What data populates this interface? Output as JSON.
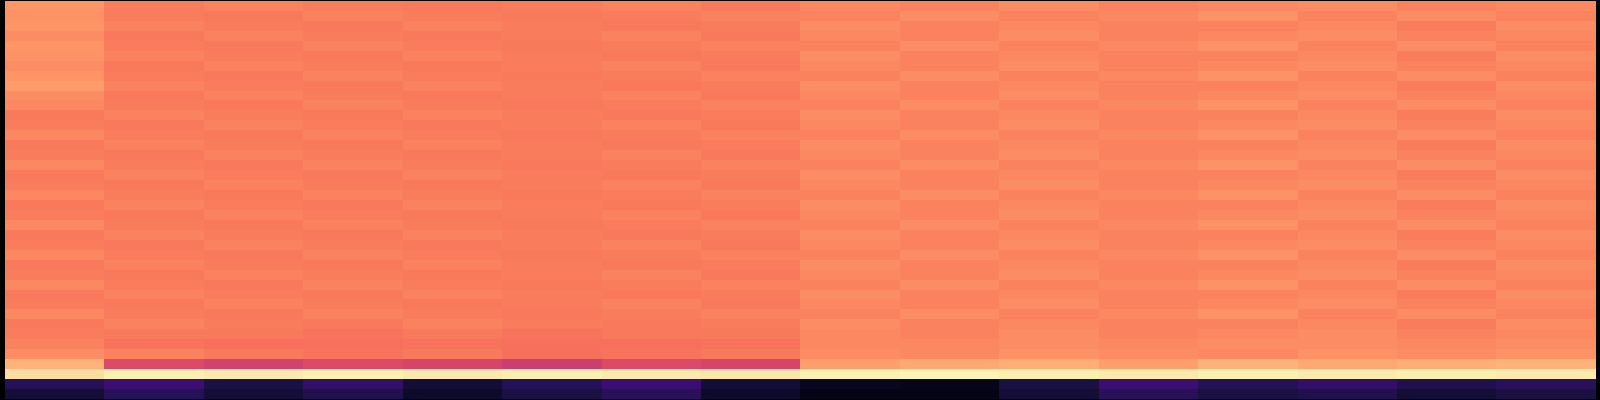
{
  "chart_data": {
    "type": "heatmap",
    "tick_labels": false,
    "color_range": [
      0,
      1
    ],
    "cells": [
      [
        0.78,
        0.73,
        0.74,
        0.73,
        0.72,
        0.73,
        0.74,
        0.72,
        0.75,
        0.74,
        0.76,
        0.74,
        0.75,
        0.76,
        0.74,
        0.75
      ],
      [
        0.77,
        0.73,
        0.72,
        0.74,
        0.73,
        0.72,
        0.73,
        0.74,
        0.74,
        0.76,
        0.74,
        0.75,
        0.77,
        0.74,
        0.76,
        0.74
      ],
      [
        0.78,
        0.74,
        0.73,
        0.72,
        0.74,
        0.73,
        0.72,
        0.73,
        0.76,
        0.74,
        0.75,
        0.74,
        0.74,
        0.75,
        0.73,
        0.76
      ],
      [
        0.76,
        0.72,
        0.74,
        0.73,
        0.72,
        0.73,
        0.74,
        0.72,
        0.75,
        0.74,
        0.76,
        0.74,
        0.75,
        0.76,
        0.74,
        0.75
      ],
      [
        0.78,
        0.73,
        0.72,
        0.74,
        0.73,
        0.72,
        0.73,
        0.74,
        0.74,
        0.76,
        0.74,
        0.75,
        0.77,
        0.74,
        0.76,
        0.74
      ],
      [
        0.77,
        0.74,
        0.73,
        0.72,
        0.74,
        0.73,
        0.72,
        0.73,
        0.76,
        0.74,
        0.75,
        0.74,
        0.74,
        0.75,
        0.73,
        0.76
      ],
      [
        0.76,
        0.72,
        0.74,
        0.73,
        0.72,
        0.73,
        0.74,
        0.72,
        0.75,
        0.74,
        0.76,
        0.74,
        0.75,
        0.76,
        0.74,
        0.75
      ],
      [
        0.78,
        0.73,
        0.72,
        0.74,
        0.73,
        0.72,
        0.73,
        0.74,
        0.74,
        0.76,
        0.74,
        0.75,
        0.77,
        0.74,
        0.76,
        0.74
      ],
      [
        0.79,
        0.74,
        0.73,
        0.72,
        0.74,
        0.73,
        0.72,
        0.73,
        0.76,
        0.74,
        0.75,
        0.74,
        0.74,
        0.75,
        0.73,
        0.76
      ],
      [
        0.76,
        0.72,
        0.74,
        0.73,
        0.72,
        0.73,
        0.74,
        0.72,
        0.75,
        0.74,
        0.76,
        0.74,
        0.75,
        0.76,
        0.74,
        0.75
      ],
      [
        0.75,
        0.73,
        0.72,
        0.74,
        0.73,
        0.72,
        0.73,
        0.74,
        0.74,
        0.76,
        0.74,
        0.75,
        0.77,
        0.74,
        0.76,
        0.74
      ],
      [
        0.72,
        0.74,
        0.73,
        0.72,
        0.74,
        0.73,
        0.72,
        0.73,
        0.76,
        0.74,
        0.75,
        0.74,
        0.74,
        0.75,
        0.73,
        0.76
      ],
      [
        0.73,
        0.72,
        0.74,
        0.73,
        0.72,
        0.73,
        0.74,
        0.72,
        0.75,
        0.74,
        0.76,
        0.74,
        0.75,
        0.76,
        0.74,
        0.75
      ],
      [
        0.75,
        0.73,
        0.72,
        0.74,
        0.73,
        0.72,
        0.73,
        0.74,
        0.74,
        0.76,
        0.74,
        0.75,
        0.77,
        0.74,
        0.76,
        0.74
      ],
      [
        0.72,
        0.74,
        0.73,
        0.72,
        0.74,
        0.73,
        0.72,
        0.73,
        0.76,
        0.74,
        0.75,
        0.74,
        0.74,
        0.75,
        0.73,
        0.76
      ],
      [
        0.73,
        0.72,
        0.74,
        0.73,
        0.72,
        0.73,
        0.74,
        0.72,
        0.75,
        0.74,
        0.76,
        0.74,
        0.75,
        0.76,
        0.74,
        0.75
      ],
      [
        0.75,
        0.73,
        0.72,
        0.74,
        0.73,
        0.72,
        0.73,
        0.74,
        0.74,
        0.76,
        0.74,
        0.75,
        0.77,
        0.74,
        0.76,
        0.74
      ],
      [
        0.72,
        0.74,
        0.73,
        0.72,
        0.74,
        0.73,
        0.72,
        0.73,
        0.76,
        0.74,
        0.75,
        0.74,
        0.74,
        0.75,
        0.73,
        0.76
      ],
      [
        0.73,
        0.72,
        0.74,
        0.73,
        0.72,
        0.73,
        0.74,
        0.72,
        0.75,
        0.74,
        0.76,
        0.74,
        0.75,
        0.76,
        0.74,
        0.75
      ],
      [
        0.75,
        0.73,
        0.72,
        0.74,
        0.73,
        0.72,
        0.73,
        0.74,
        0.74,
        0.76,
        0.74,
        0.75,
        0.77,
        0.74,
        0.76,
        0.74
      ],
      [
        0.72,
        0.74,
        0.73,
        0.72,
        0.74,
        0.73,
        0.72,
        0.73,
        0.76,
        0.74,
        0.75,
        0.74,
        0.74,
        0.75,
        0.73,
        0.76
      ],
      [
        0.73,
        0.72,
        0.74,
        0.73,
        0.72,
        0.73,
        0.74,
        0.72,
        0.75,
        0.74,
        0.76,
        0.74,
        0.75,
        0.76,
        0.74,
        0.75
      ],
      [
        0.75,
        0.73,
        0.72,
        0.74,
        0.73,
        0.72,
        0.73,
        0.74,
        0.74,
        0.76,
        0.74,
        0.75,
        0.77,
        0.74,
        0.76,
        0.74
      ],
      [
        0.72,
        0.74,
        0.73,
        0.72,
        0.74,
        0.73,
        0.72,
        0.73,
        0.76,
        0.74,
        0.75,
        0.74,
        0.74,
        0.75,
        0.73,
        0.76
      ],
      [
        0.73,
        0.72,
        0.74,
        0.73,
        0.72,
        0.73,
        0.74,
        0.72,
        0.75,
        0.74,
        0.76,
        0.74,
        0.75,
        0.76,
        0.74,
        0.75
      ],
      [
        0.75,
        0.73,
        0.72,
        0.74,
        0.73,
        0.72,
        0.73,
        0.74,
        0.74,
        0.76,
        0.74,
        0.75,
        0.77,
        0.74,
        0.76,
        0.74
      ],
      [
        0.72,
        0.74,
        0.73,
        0.72,
        0.74,
        0.73,
        0.72,
        0.73,
        0.76,
        0.74,
        0.75,
        0.74,
        0.74,
        0.75,
        0.73,
        0.76
      ],
      [
        0.73,
        0.72,
        0.74,
        0.73,
        0.72,
        0.73,
        0.74,
        0.72,
        0.75,
        0.74,
        0.76,
        0.74,
        0.75,
        0.76,
        0.74,
        0.75
      ],
      [
        0.75,
        0.73,
        0.72,
        0.74,
        0.73,
        0.72,
        0.73,
        0.74,
        0.74,
        0.76,
        0.74,
        0.75,
        0.77,
        0.74,
        0.76,
        0.74
      ],
      [
        0.72,
        0.74,
        0.73,
        0.72,
        0.74,
        0.73,
        0.72,
        0.73,
        0.76,
        0.74,
        0.75,
        0.74,
        0.74,
        0.75,
        0.73,
        0.76
      ],
      [
        0.73,
        0.72,
        0.74,
        0.73,
        0.72,
        0.73,
        0.74,
        0.72,
        0.75,
        0.74,
        0.76,
        0.74,
        0.75,
        0.76,
        0.74,
        0.75
      ],
      [
        0.75,
        0.73,
        0.72,
        0.74,
        0.73,
        0.72,
        0.73,
        0.74,
        0.74,
        0.76,
        0.74,
        0.75,
        0.77,
        0.74,
        0.76,
        0.74
      ],
      [
        0.72,
        0.74,
        0.73,
        0.72,
        0.74,
        0.73,
        0.72,
        0.73,
        0.76,
        0.74,
        0.75,
        0.74,
        0.74,
        0.75,
        0.73,
        0.76
      ],
      [
        0.73,
        0.72,
        0.72,
        0.71,
        0.72,
        0.71,
        0.72,
        0.72,
        0.75,
        0.74,
        0.76,
        0.74,
        0.75,
        0.76,
        0.74,
        0.75
      ],
      [
        0.74,
        0.71,
        0.7,
        0.7,
        0.71,
        0.7,
        0.7,
        0.71,
        0.75,
        0.75,
        0.76,
        0.75,
        0.76,
        0.76,
        0.75,
        0.76
      ],
      [
        0.76,
        0.74,
        0.72,
        0.71,
        0.72,
        0.7,
        0.71,
        0.72,
        0.76,
        0.75,
        0.77,
        0.76,
        0.75,
        0.77,
        0.76,
        0.77
      ],
      [
        0.84,
        0.6,
        0.57,
        0.6,
        0.58,
        0.55,
        0.6,
        0.58,
        0.8,
        0.82,
        0.83,
        0.8,
        0.84,
        0.82,
        0.83,
        0.84
      ],
      [
        0.93,
        0.97,
        0.96,
        0.97,
        0.96,
        0.97,
        0.96,
        0.95,
        0.97,
        0.98,
        0.97,
        0.96,
        0.97,
        0.96,
        0.97,
        0.96
      ],
      [
        0.15,
        0.2,
        0.12,
        0.18,
        0.1,
        0.15,
        0.2,
        0.1,
        0.06,
        0.05,
        0.12,
        0.2,
        0.15,
        0.18,
        0.14,
        0.16
      ],
      [
        0.1,
        0.15,
        0.1,
        0.14,
        0.08,
        0.12,
        0.16,
        0.08,
        0.04,
        0.04,
        0.1,
        0.16,
        0.12,
        0.14,
        0.1,
        0.12
      ]
    ]
  }
}
